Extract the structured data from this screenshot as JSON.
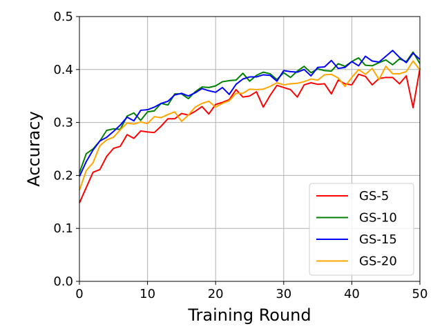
{
  "chart_data": {
    "type": "line",
    "xlabel": "Training Round",
    "ylabel": "Accuracy",
    "xlim": [
      0,
      50
    ],
    "ylim": [
      0.0,
      0.5
    ],
    "xticks": [
      0,
      10,
      20,
      30,
      40,
      50
    ],
    "xtick_labels": [
      "0",
      "10",
      "20",
      "30",
      "40",
      "50"
    ],
    "yticks": [
      0.0,
      0.1,
      0.2,
      0.3,
      0.4,
      0.5
    ],
    "ytick_labels": [
      "0.0",
      "0.1",
      "0.2",
      "0.3",
      "0.4",
      "0.5"
    ],
    "grid": true,
    "legend_position": "lower-right",
    "x": [
      0,
      1,
      2,
      3,
      4,
      5,
      6,
      7,
      8,
      9,
      10,
      11,
      12,
      13,
      14,
      15,
      16,
      17,
      18,
      19,
      20,
      21,
      22,
      23,
      24,
      25,
      26,
      27,
      28,
      29,
      30,
      31,
      32,
      33,
      34,
      35,
      36,
      37,
      38,
      39,
      40,
      41,
      42,
      43,
      44,
      45,
      46,
      47,
      48,
      49,
      50
    ],
    "series": [
      {
        "name": "GS-5",
        "color": "#ff0000",
        "values": [
          0.148,
          0.177,
          0.206,
          0.211,
          0.236,
          0.251,
          0.255,
          0.277,
          0.27,
          0.284,
          0.282,
          0.281,
          0.293,
          0.307,
          0.307,
          0.317,
          0.314,
          0.321,
          0.33,
          0.316,
          0.334,
          0.338,
          0.343,
          0.362,
          0.348,
          0.35,
          0.358,
          0.329,
          0.351,
          0.37,
          0.366,
          0.362,
          0.348,
          0.371,
          0.375,
          0.372,
          0.373,
          0.354,
          0.38,
          0.373,
          0.371,
          0.391,
          0.387,
          0.371,
          0.383,
          0.385,
          0.385,
          0.373,
          0.388,
          0.328,
          0.402
        ]
      },
      {
        "name": "GS-10",
        "color": "#008000",
        "values": [
          0.205,
          0.241,
          0.25,
          0.265,
          0.285,
          0.288,
          0.287,
          0.312,
          0.318,
          0.304,
          0.32,
          0.322,
          0.336,
          0.333,
          0.354,
          0.354,
          0.345,
          0.358,
          0.367,
          0.366,
          0.369,
          0.377,
          0.379,
          0.38,
          0.393,
          0.378,
          0.389,
          0.395,
          0.392,
          0.381,
          0.394,
          0.385,
          0.397,
          0.406,
          0.394,
          0.401,
          0.398,
          0.397,
          0.411,
          0.406,
          0.415,
          0.422,
          0.408,
          0.407,
          0.413,
          0.418,
          0.409,
          0.42,
          0.415,
          0.433,
          0.411
        ]
      },
      {
        "name": "GS-15",
        "color": "#0000ff",
        "values": [
          0.198,
          0.226,
          0.248,
          0.265,
          0.272,
          0.283,
          0.295,
          0.31,
          0.303,
          0.323,
          0.324,
          0.329,
          0.336,
          0.34,
          0.352,
          0.355,
          0.35,
          0.356,
          0.364,
          0.36,
          0.357,
          0.366,
          0.353,
          0.372,
          0.382,
          0.386,
          0.386,
          0.39,
          0.389,
          0.378,
          0.398,
          0.396,
          0.395,
          0.4,
          0.388,
          0.404,
          0.405,
          0.417,
          0.402,
          0.404,
          0.415,
          0.407,
          0.425,
          0.416,
          0.414,
          0.425,
          0.436,
          0.423,
          0.413,
          0.431,
          0.419
        ]
      },
      {
        "name": "GS-20",
        "color": "#ffa500",
        "values": [
          0.172,
          0.209,
          0.224,
          0.256,
          0.267,
          0.272,
          0.286,
          0.299,
          0.297,
          0.301,
          0.298,
          0.311,
          0.309,
          0.315,
          0.32,
          0.302,
          0.314,
          0.329,
          0.336,
          0.34,
          0.329,
          0.336,
          0.341,
          0.355,
          0.355,
          0.363,
          0.362,
          0.363,
          0.368,
          0.375,
          0.371,
          0.373,
          0.374,
          0.377,
          0.382,
          0.38,
          0.39,
          0.391,
          0.384,
          0.368,
          0.385,
          0.4,
          0.391,
          0.402,
          0.381,
          0.406,
          0.392,
          0.392,
          0.396,
          0.416,
          0.399
        ]
      }
    ]
  }
}
